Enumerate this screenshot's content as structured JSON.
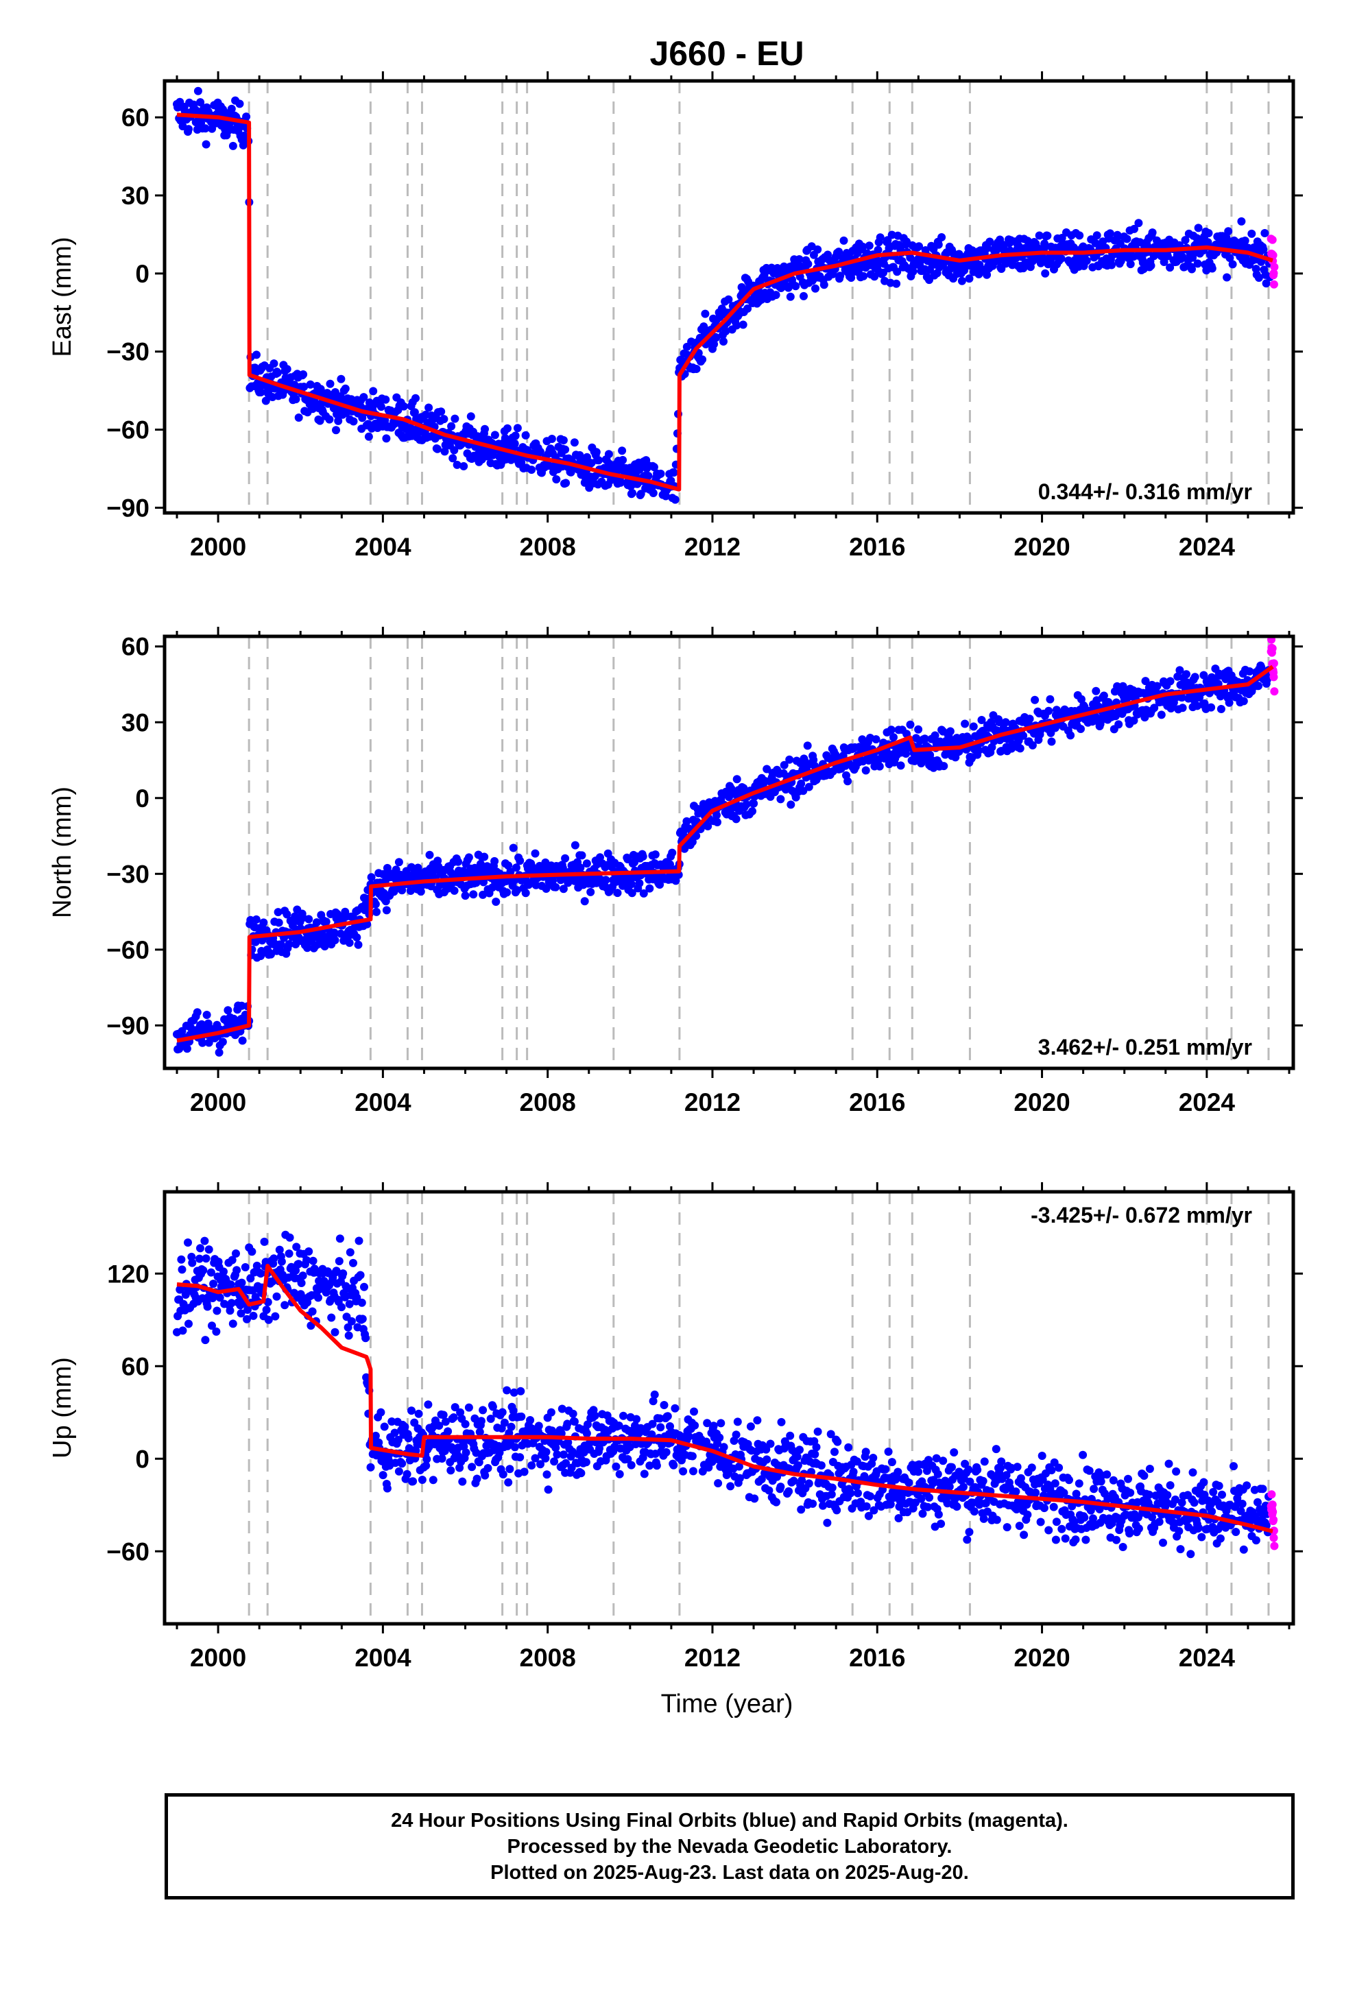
{
  "title": "J660 - EU",
  "xlabel": "Time (year)",
  "footer": {
    "line1": "24 Hour Positions Using Final Orbits (blue) and Rapid Orbits (magenta).",
    "line2": "Processed by the Nevada Geodetic Laboratory.",
    "line3": "Plotted on 2025-Aug-23. Last data on 2025-Aug-20."
  },
  "colors": {
    "final_orbits": "#0000ff",
    "rapid_orbits": "#ff00ff",
    "model_fit": "#ff0000",
    "event_lines": "#bbbbbb",
    "frame": "#000000"
  },
  "chart_data": [
    {
      "type": "scatter",
      "ylabel": "East (mm)",
      "velocity_label": "0.344+/- 0.316 mm/yr",
      "velocity_label_position": "bottom-right",
      "xlim": [
        1998.7,
        2026.1
      ],
      "ylim": [
        -92,
        74
      ],
      "xticks": [
        2000,
        2004,
        2008,
        2012,
        2016,
        2020,
        2024
      ],
      "yticks": [
        -90,
        -60,
        -30,
        0,
        30,
        60
      ],
      "ytick_labels": [
        "−90",
        "−60",
        "−30",
        "0",
        "30",
        "60"
      ],
      "event_lines": [
        2000.75,
        2001.2,
        2003.7,
        2004.6,
        2004.95,
        2006.9,
        2007.25,
        2007.5,
        2009.6,
        2011.2,
        2015.4,
        2016.3,
        2016.85,
        2018.25,
        2024.0,
        2024.6,
        2025.5
      ],
      "series": [
        {
          "kind": "final",
          "x": [
            1999.0,
            1999.5,
            2000.0,
            2000.5,
            2000.75,
            2000.76,
            2001.5,
            2002.5,
            2003.5,
            2004.5,
            2005.5,
            2006.5,
            2007.5,
            2008.5,
            2009.5,
            2010.5,
            2011.1,
            2011.2,
            2011.6,
            2012.3,
            2013.0,
            2014.0,
            2015.0,
            2016.0,
            2017.0,
            2018.0,
            2019.0,
            2020.0,
            2021.0,
            2022.0,
            2023.0,
            2024.0,
            2025.0,
            2025.55
          ],
          "y": [
            61,
            61,
            59,
            57,
            58,
            -39,
            -43,
            -48,
            -53,
            -56,
            -62,
            -67,
            -69,
            -73,
            -77,
            -80,
            -83,
            -39,
            -29,
            -18,
            -6,
            0,
            3,
            7,
            5,
            5,
            7,
            8,
            8,
            9,
            9,
            10,
            8,
            6
          ],
          "spread": 4
        },
        {
          "kind": "rapid",
          "x": [
            2025.56,
            2025.6,
            2025.64
          ],
          "y": [
            12,
            5,
            -1
          ],
          "spread": 3
        },
        {
          "kind": "model",
          "x": [
            1999.0,
            2000.0,
            2000.75,
            2000.76,
            2001.5,
            2002.5,
            2003.5,
            2004.5,
            2005.5,
            2006.5,
            2007.5,
            2008.5,
            2009.5,
            2010.5,
            2011.19,
            2011.2,
            2011.6,
            2012.3,
            2013.0,
            2014.0,
            2015.0,
            2016.0,
            2016.85,
            2018.0,
            2019.0,
            2020.0,
            2021.0,
            2022.0,
            2023.0,
            2024.0,
            2025.0,
            2025.6
          ],
          "y": [
            61,
            60,
            58,
            -39,
            -43,
            -48,
            -53,
            -56,
            -62,
            -66,
            -70,
            -73,
            -77,
            -80,
            -83,
            -39,
            -29,
            -18,
            -6,
            0,
            3,
            7,
            8,
            5,
            7,
            8,
            8,
            9,
            9,
            10,
            8,
            5
          ]
        }
      ]
    },
    {
      "type": "scatter",
      "ylabel": "North (mm)",
      "velocity_label": "3.462+/- 0.251 mm/yr",
      "velocity_label_position": "bottom-right",
      "xlim": [
        1998.7,
        2026.1
      ],
      "ylim": [
        -107,
        64
      ],
      "xticks": [
        2000,
        2004,
        2008,
        2012,
        2016,
        2020,
        2024
      ],
      "yticks": [
        -90,
        -60,
        -30,
        0,
        30,
        60
      ],
      "ytick_labels": [
        "−90",
        "−60",
        "−30",
        "0",
        "30",
        "60"
      ],
      "event_lines": [
        2000.75,
        2001.2,
        2003.7,
        2004.6,
        2004.95,
        2006.9,
        2007.25,
        2007.5,
        2009.6,
        2011.2,
        2015.4,
        2016.3,
        2016.85,
        2018.25,
        2024.0,
        2024.6,
        2025.5
      ],
      "series": [
        {
          "kind": "final",
          "x": [
            1999.0,
            1999.5,
            2000.0,
            2000.5,
            2000.75,
            2000.76,
            2001.5,
            2002.5,
            2003.5,
            2003.71,
            2004.5,
            2005.5,
            2006.5,
            2007.5,
            2008.5,
            2009.5,
            2010.5,
            2011.19,
            2011.2,
            2012.0,
            2013.0,
            2014.0,
            2015.0,
            2016.0,
            2016.8,
            2016.9,
            2018.0,
            2019.0,
            2020.0,
            2021.0,
            2022.0,
            2023.0,
            2024.0,
            2025.0,
            2025.5
          ],
          "y": [
            -95,
            -93,
            -92,
            -90,
            -88,
            -55,
            -53,
            -52,
            -50,
            -36,
            -33,
            -32,
            -31,
            -31,
            -30,
            -30,
            -29,
            -29,
            -18,
            -4,
            2,
            8,
            14,
            18,
            23,
            19,
            20,
            25,
            29,
            33,
            37,
            41,
            43,
            45,
            48
          ],
          "spread": 4
        },
        {
          "kind": "rapid",
          "x": [
            2025.56,
            2025.6,
            2025.64
          ],
          "y": [
            60,
            54,
            48
          ],
          "spread": 3
        },
        {
          "kind": "model",
          "x": [
            1999.0,
            2000.0,
            2000.75,
            2000.76,
            2002.0,
            2003.0,
            2003.7,
            2003.71,
            2005.0,
            2007.0,
            2009.0,
            2011.19,
            2011.2,
            2012.0,
            2013.0,
            2014.0,
            2015.0,
            2016.0,
            2016.8,
            2016.9,
            2018.0,
            2019.0,
            2020.0,
            2021.0,
            2022.0,
            2023.0,
            2024.0,
            2025.0,
            2025.6
          ],
          "y": [
            -96,
            -93,
            -90,
            -55,
            -53,
            -50,
            -48,
            -35,
            -33,
            -31,
            -30,
            -29,
            -19,
            -5,
            2,
            8,
            14,
            19,
            24,
            19,
            20,
            25,
            29,
            33,
            37,
            41,
            43,
            45,
            52
          ]
        }
      ]
    },
    {
      "type": "scatter",
      "ylabel": "Up (mm)",
      "velocity_label": "-3.425+/- 0.672 mm/yr",
      "velocity_label_position": "top-right",
      "xlim": [
        1998.7,
        2026.1
      ],
      "ylim": [
        -107,
        173
      ],
      "xticks": [
        2000,
        2004,
        2008,
        2012,
        2016,
        2020,
        2024
      ],
      "yticks": [
        -60,
        0,
        60,
        120
      ],
      "ytick_labels": [
        "−60",
        "0",
        "60",
        "120"
      ],
      "event_lines": [
        2000.75,
        2001.2,
        2003.7,
        2004.6,
        2004.95,
        2006.9,
        2007.25,
        2007.5,
        2009.6,
        2011.2,
        2015.4,
        2016.3,
        2016.85,
        2018.25,
        2024.0,
        2024.6,
        2025.5
      ],
      "series": [
        {
          "kind": "final",
          "x": [
            1999.0,
            1999.5,
            2000.0,
            2000.5,
            2001.0,
            2001.5,
            2002.0,
            2002.5,
            2003.0,
            2003.5,
            2003.71,
            2004.5,
            2005.5,
            2006.5,
            2007.5,
            2008.5,
            2009.5,
            2010.5,
            2011.5,
            2012.5,
            2013.5,
            2014.5,
            2015.5,
            2016.5,
            2017.5,
            2018.5,
            2019.5,
            2020.5,
            2021.5,
            2022.5,
            2023.5,
            2024.5,
            2025.5
          ],
          "y": [
            105,
            115,
            110,
            112,
            108,
            120,
            115,
            112,
            108,
            105,
            8,
            6,
            12,
            12,
            12,
            12,
            13,
            14,
            10,
            2,
            -5,
            -10,
            -13,
            -17,
            -18,
            -20,
            -22,
            -25,
            -28,
            -30,
            -33,
            -37,
            -40
          ],
          "spread": 12
        },
        {
          "kind": "rapid",
          "x": [
            2025.56,
            2025.6,
            2025.64
          ],
          "y": [
            -25,
            -38,
            -52
          ],
          "spread": 4
        },
        {
          "kind": "model",
          "x": [
            1999.0,
            1999.5,
            2000.0,
            2000.5,
            2000.75,
            2001.1,
            2001.2,
            2001.6,
            2002.0,
            2002.5,
            2003.0,
            2003.6,
            2003.7,
            2003.71,
            2004.6,
            2004.95,
            2005.0,
            2006.0,
            2007.0,
            2008.0,
            2009.0,
            2010.0,
            2011.0,
            2012.0,
            2013.0,
            2014.0,
            2015.0,
            2016.0,
            2017.0,
            2018.0,
            2019.0,
            2020.0,
            2021.0,
            2022.0,
            2023.0,
            2024.0,
            2025.0,
            2025.6
          ],
          "y": [
            113,
            112,
            108,
            110,
            100,
            102,
            125,
            110,
            96,
            85,
            72,
            66,
            58,
            7,
            3,
            2,
            14,
            14,
            14,
            14,
            13,
            13,
            12,
            5,
            -5,
            -10,
            -13,
            -17,
            -20,
            -22,
            -24,
            -26,
            -28,
            -31,
            -34,
            -37,
            -43,
            -47
          ]
        }
      ]
    }
  ]
}
